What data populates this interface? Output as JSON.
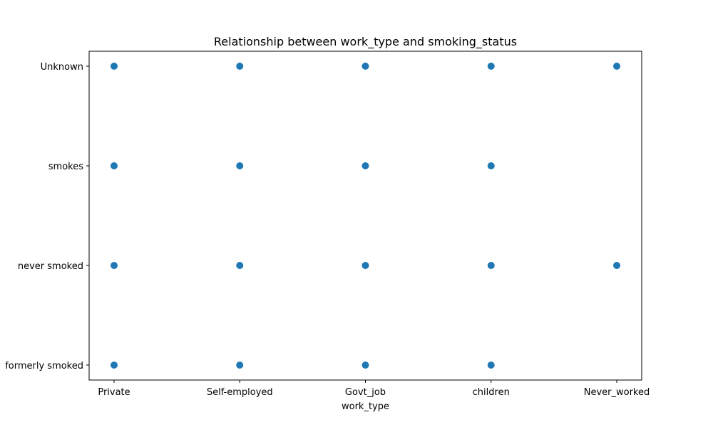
{
  "chart_data": {
    "type": "scatter",
    "title": "Relationship between work_type and smoking_status",
    "xlabel": "work_type",
    "ylabel": "",
    "x_categories": [
      "Private",
      "Self-employed",
      "Govt_job",
      "children",
      "Never_worked"
    ],
    "y_categories": [
      "formerly smoked",
      "never smoked",
      "smokes",
      "Unknown"
    ],
    "points": [
      {
        "x": "Private",
        "y": "Unknown"
      },
      {
        "x": "Self-employed",
        "y": "Unknown"
      },
      {
        "x": "Govt_job",
        "y": "Unknown"
      },
      {
        "x": "children",
        "y": "Unknown"
      },
      {
        "x": "Never_worked",
        "y": "Unknown"
      },
      {
        "x": "Private",
        "y": "smokes"
      },
      {
        "x": "Self-employed",
        "y": "smokes"
      },
      {
        "x": "Govt_job",
        "y": "smokes"
      },
      {
        "x": "children",
        "y": "smokes"
      },
      {
        "x": "Private",
        "y": "never smoked"
      },
      {
        "x": "Self-employed",
        "y": "never smoked"
      },
      {
        "x": "Govt_job",
        "y": "never smoked"
      },
      {
        "x": "children",
        "y": "never smoked"
      },
      {
        "x": "Never_worked",
        "y": "never smoked"
      },
      {
        "x": "Private",
        "y": "formerly smoked"
      },
      {
        "x": "Self-employed",
        "y": "formerly smoked"
      },
      {
        "x": "Govt_job",
        "y": "formerly smoked"
      },
      {
        "x": "children",
        "y": "formerly smoked"
      }
    ],
    "marker_color": "#1f77b4",
    "grid": false,
    "legend": "none"
  }
}
